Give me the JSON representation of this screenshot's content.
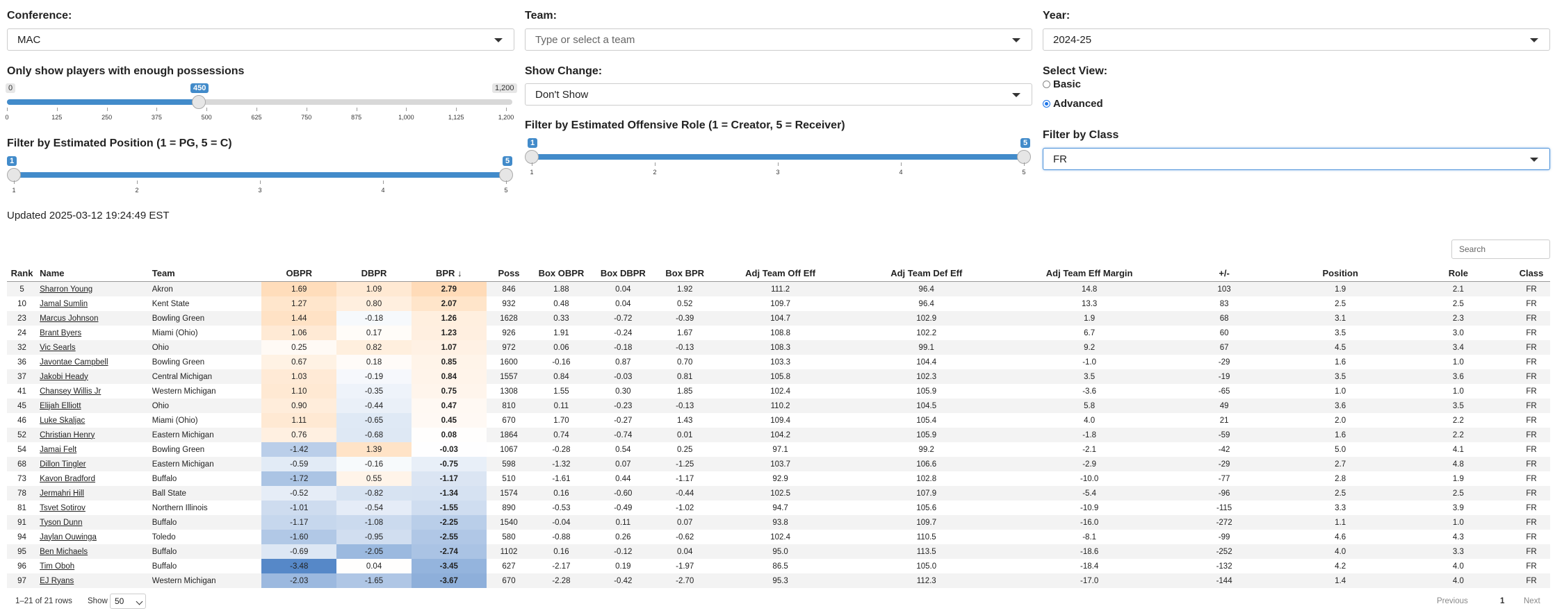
{
  "filters": {
    "conference": {
      "label": "Conference:",
      "value": "MAC"
    },
    "team": {
      "label": "Team:",
      "placeholder": "Type or select a team"
    },
    "year": {
      "label": "Year:",
      "value": "2024-25"
    },
    "possessions": {
      "label": "Only show players with enough possessions",
      "min_label": "0",
      "max_label": "1,200",
      "value_label": "450",
      "value": 450,
      "min": 0,
      "max": 1200,
      "ticks": [
        "0",
        "125",
        "250",
        "375",
        "500",
        "625",
        "750",
        "875",
        "1,000",
        "1,125",
        "1,200"
      ]
    },
    "show_change": {
      "label": "Show Change:",
      "value": "Don't Show"
    },
    "select_view": {
      "label": "Select View:",
      "options": [
        "Basic",
        "Advanced"
      ],
      "selected": "Advanced"
    },
    "position": {
      "label": "Filter by Estimated Position (1 = PG, 5 = C)",
      "from": 1,
      "to": 5,
      "from_label": "1",
      "to_label": "5",
      "ticks": [
        "1",
        "2",
        "3",
        "4",
        "5"
      ]
    },
    "role": {
      "label": "Filter by Estimated Offensive Role (1 = Creator, 5 = Receiver)",
      "from": 1,
      "to": 5,
      "from_label": "1",
      "to_label": "5",
      "ticks": [
        "1",
        "2",
        "3",
        "4",
        "5"
      ]
    },
    "class": {
      "label": "Filter by Class",
      "value": "FR"
    }
  },
  "updated": "Updated 2025-03-12 19:24:49 EST",
  "search": {
    "placeholder": "Search"
  },
  "table": {
    "headers": [
      "Rank",
      "Name",
      "Team",
      "OBPR",
      "DBPR",
      "BPR ↓",
      "Poss",
      "Box OBPR",
      "Box DBPR",
      "Box BPR",
      "Adj Team Off Eff",
      "Adj Team Def Eff",
      "Adj Team Eff Margin",
      "+/-",
      "Position",
      "Role",
      "Class"
    ],
    "rows": [
      [
        "5",
        "Sharron Young",
        "Akron",
        "1.69",
        "1.09",
        "2.79",
        "846",
        "1.88",
        "0.04",
        "1.92",
        "111.2",
        "96.4",
        "14.8",
        "103",
        "1.9",
        "2.1",
        "FR"
      ],
      [
        "10",
        "Jamal Sumlin",
        "Kent State",
        "1.27",
        "0.80",
        "2.07",
        "932",
        "0.48",
        "0.04",
        "0.52",
        "109.7",
        "96.4",
        "13.3",
        "83",
        "2.5",
        "2.5",
        "FR"
      ],
      [
        "23",
        "Marcus Johnson",
        "Bowling Green",
        "1.44",
        "-0.18",
        "1.26",
        "1628",
        "0.33",
        "-0.72",
        "-0.39",
        "104.7",
        "102.9",
        "1.9",
        "68",
        "3.1",
        "2.3",
        "FR"
      ],
      [
        "24",
        "Brant Byers",
        "Miami (Ohio)",
        "1.06",
        "0.17",
        "1.23",
        "926",
        "1.91",
        "-0.24",
        "1.67",
        "108.8",
        "102.2",
        "6.7",
        "60",
        "3.5",
        "3.0",
        "FR"
      ],
      [
        "32",
        "Vic Searls",
        "Ohio",
        "0.25",
        "0.82",
        "1.07",
        "972",
        "0.06",
        "-0.18",
        "-0.13",
        "108.3",
        "99.1",
        "9.2",
        "67",
        "4.5",
        "3.4",
        "FR"
      ],
      [
        "36",
        "Javontae Campbell",
        "Bowling Green",
        "0.67",
        "0.18",
        "0.85",
        "1600",
        "-0.16",
        "0.87",
        "0.70",
        "103.3",
        "104.4",
        "-1.0",
        "-29",
        "1.6",
        "1.0",
        "FR"
      ],
      [
        "37",
        "Jakobi Heady",
        "Central Michigan",
        "1.03",
        "-0.19",
        "0.84",
        "1557",
        "0.84",
        "-0.03",
        "0.81",
        "105.8",
        "102.3",
        "3.5",
        "-19",
        "3.5",
        "3.6",
        "FR"
      ],
      [
        "41",
        "Chansey Willis Jr",
        "Western Michigan",
        "1.10",
        "-0.35",
        "0.75",
        "1308",
        "1.55",
        "0.30",
        "1.85",
        "102.4",
        "105.9",
        "-3.6",
        "-65",
        "1.0",
        "1.0",
        "FR"
      ],
      [
        "45",
        "Elijah Elliott",
        "Ohio",
        "0.90",
        "-0.44",
        "0.47",
        "810",
        "0.11",
        "-0.23",
        "-0.13",
        "110.2",
        "104.5",
        "5.8",
        "49",
        "3.6",
        "3.5",
        "FR"
      ],
      [
        "46",
        "Luke Skaljac",
        "Miami (Ohio)",
        "1.11",
        "-0.65",
        "0.45",
        "670",
        "1.70",
        "-0.27",
        "1.43",
        "109.4",
        "105.4",
        "4.0",
        "21",
        "2.0",
        "2.2",
        "FR"
      ],
      [
        "52",
        "Christian Henry",
        "Eastern Michigan",
        "0.76",
        "-0.68",
        "0.08",
        "1864",
        "0.74",
        "-0.74",
        "0.01",
        "104.2",
        "105.9",
        "-1.8",
        "-59",
        "1.6",
        "2.2",
        "FR"
      ],
      [
        "54",
        "Jamai Felt",
        "Bowling Green",
        "-1.42",
        "1.39",
        "-0.03",
        "1067",
        "-0.28",
        "0.54",
        "0.25",
        "97.1",
        "99.2",
        "-2.1",
        "-42",
        "5.0",
        "4.1",
        "FR"
      ],
      [
        "68",
        "Dillon Tingler",
        "Eastern Michigan",
        "-0.59",
        "-0.16",
        "-0.75",
        "598",
        "-1.32",
        "0.07",
        "-1.25",
        "103.7",
        "106.6",
        "-2.9",
        "-29",
        "2.7",
        "4.8",
        "FR"
      ],
      [
        "73",
        "Kavon Bradford",
        "Buffalo",
        "-1.72",
        "0.55",
        "-1.17",
        "510",
        "-1.61",
        "0.44",
        "-1.17",
        "92.9",
        "102.8",
        "-10.0",
        "-77",
        "2.8",
        "1.9",
        "FR"
      ],
      [
        "78",
        "Jermahri Hill",
        "Ball State",
        "-0.52",
        "-0.82",
        "-1.34",
        "1574",
        "0.16",
        "-0.60",
        "-0.44",
        "102.5",
        "107.9",
        "-5.4",
        "-96",
        "2.5",
        "2.5",
        "FR"
      ],
      [
        "81",
        "Tsvet Sotirov",
        "Northern Illinois",
        "-1.01",
        "-0.54",
        "-1.55",
        "890",
        "-0.53",
        "-0.49",
        "-1.02",
        "94.7",
        "105.6",
        "-10.9",
        "-115",
        "3.3",
        "3.9",
        "FR"
      ],
      [
        "91",
        "Tyson Dunn",
        "Buffalo",
        "-1.17",
        "-1.08",
        "-2.25",
        "1540",
        "-0.04",
        "0.11",
        "0.07",
        "93.8",
        "109.7",
        "-16.0",
        "-272",
        "1.1",
        "1.0",
        "FR"
      ],
      [
        "94",
        "Jaylan Ouwinga",
        "Toledo",
        "-1.60",
        "-0.95",
        "-2.55",
        "580",
        "-0.88",
        "0.26",
        "-0.62",
        "102.4",
        "110.5",
        "-8.1",
        "-99",
        "4.6",
        "4.3",
        "FR"
      ],
      [
        "95",
        "Ben Michaels",
        "Buffalo",
        "-0.69",
        "-2.05",
        "-2.74",
        "1102",
        "0.16",
        "-0.12",
        "0.04",
        "95.0",
        "113.5",
        "-18.6",
        "-252",
        "4.0",
        "3.3",
        "FR"
      ],
      [
        "96",
        "Tim Oboh",
        "Buffalo",
        "-3.48",
        "0.04",
        "-3.45",
        "627",
        "-2.17",
        "0.19",
        "-1.97",
        "86.5",
        "105.0",
        "-18.4",
        "-132",
        "4.2",
        "4.0",
        "FR"
      ],
      [
        "97",
        "EJ Ryans",
        "Western Michigan",
        "-2.03",
        "-1.65",
        "-3.67",
        "670",
        "-2.28",
        "-0.42",
        "-2.70",
        "95.3",
        "112.3",
        "-17.0",
        "-144",
        "1.4",
        "4.0",
        "FR"
      ]
    ]
  },
  "footer": {
    "info": "1–21 of 21 rows",
    "show_label": "Show",
    "show_value": "50",
    "prev": "Previous",
    "page": "1",
    "next": "Next"
  },
  "colors": {
    "positive": "#f8a255",
    "negative": "#3f7fc4"
  }
}
